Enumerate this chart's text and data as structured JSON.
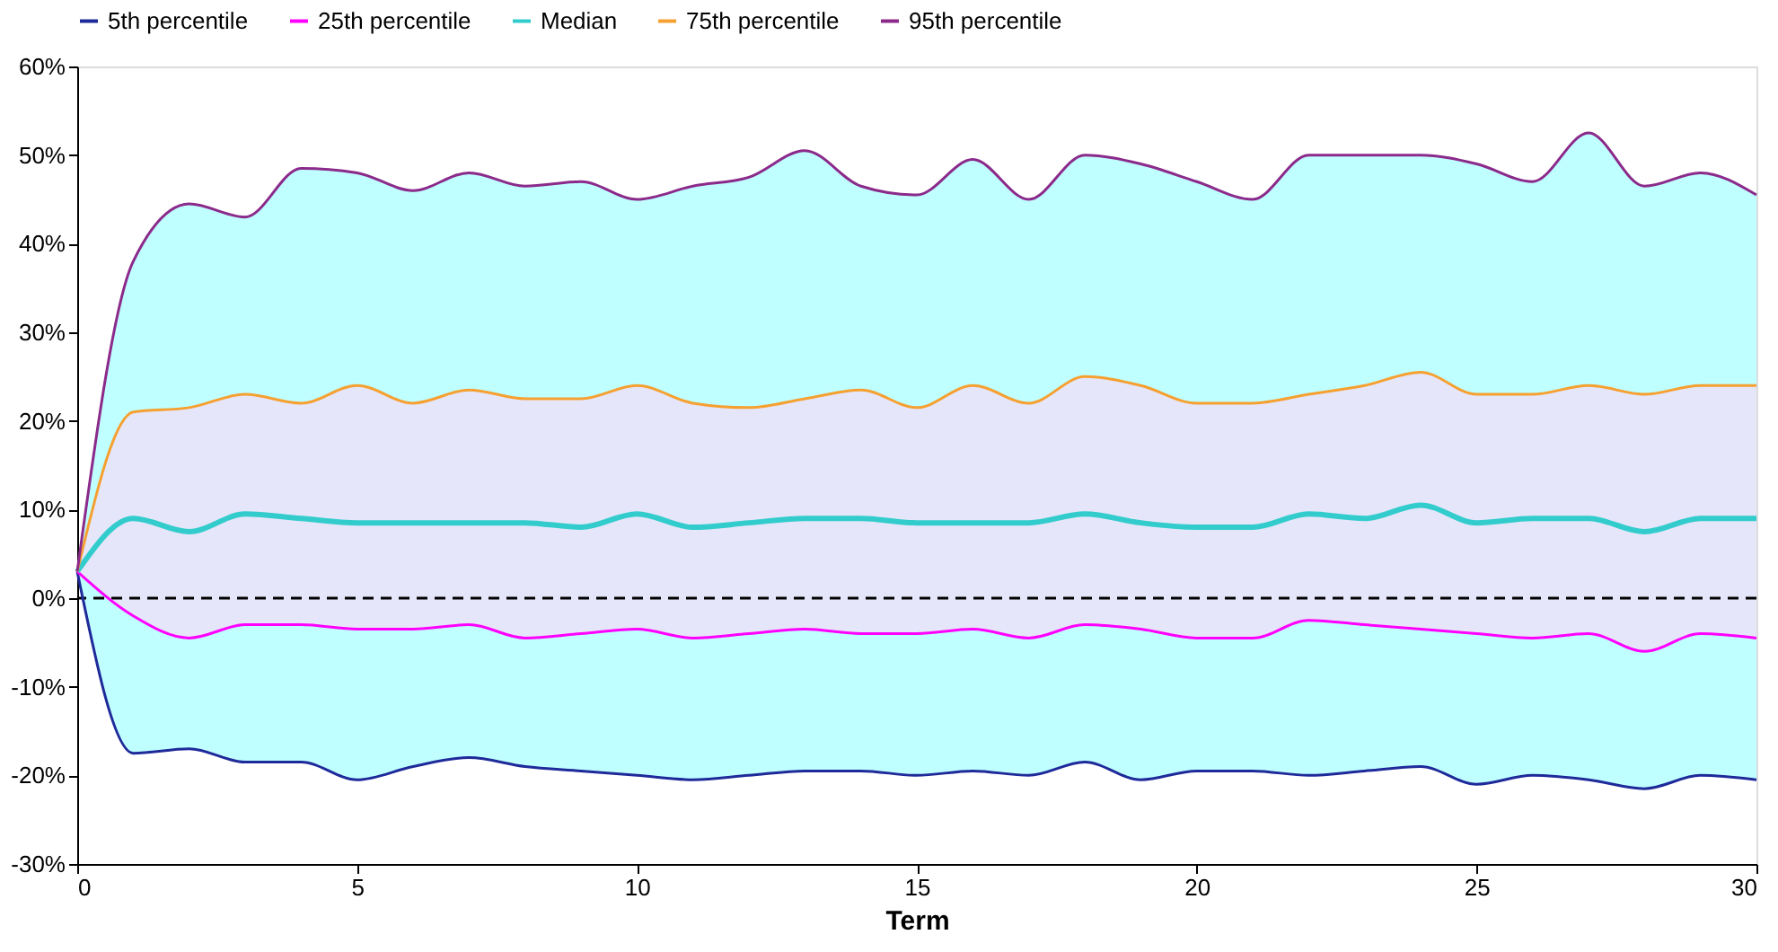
{
  "chart_data": {
    "type": "line",
    "xlabel": "Term",
    "x": [
      0,
      1,
      2,
      3,
      4,
      5,
      6,
      7,
      8,
      9,
      10,
      11,
      12,
      13,
      14,
      15,
      16,
      17,
      18,
      19,
      20,
      21,
      22,
      23,
      24,
      25,
      26,
      27,
      28,
      29,
      30
    ],
    "series": [
      {
        "name": "5th percentile",
        "color": "#1f2a9a",
        "values": [
          3,
          -17.5,
          -17,
          -18.5,
          -18.5,
          -20.5,
          -19,
          -18,
          -19,
          -19.5,
          -20,
          -20.5,
          -20,
          -19.5,
          -19.5,
          -20,
          -19.5,
          -20,
          -18.5,
          -20.5,
          -19.5,
          -19.5,
          -20,
          -19.5,
          -19,
          -21,
          -20,
          -20.5,
          -21.5,
          -20,
          -20.5
        ]
      },
      {
        "name": "25th percentile",
        "color": "#ff00ff",
        "values": [
          3,
          -2,
          -4.5,
          -3,
          -3,
          -3.5,
          -3.5,
          -3,
          -4.5,
          -4,
          -3.5,
          -4.5,
          -4,
          -3.5,
          -4,
          -4,
          -3.5,
          -4.5,
          -3,
          -3.5,
          -4.5,
          -4.5,
          -2.5,
          -3,
          -3.5,
          -4,
          -4.5,
          -4,
          -6,
          -4,
          -4.5
        ]
      },
      {
        "name": "Median",
        "color": "#33cccc",
        "values": [
          3,
          9,
          7.5,
          9.5,
          9,
          8.5,
          8.5,
          8.5,
          8.5,
          8,
          9.5,
          8,
          8.5,
          9,
          9,
          8.5,
          8.5,
          8.5,
          9.5,
          8.5,
          8,
          8,
          9.5,
          9,
          10.5,
          8.5,
          9,
          9,
          7.5,
          9,
          9
        ],
        "lower": [
          3,
          -2,
          -4.5,
          -3,
          -3,
          -3.5,
          -3.5,
          -3,
          -4.5,
          -4,
          -3.5,
          -4.5,
          -4,
          -3.5,
          -4,
          -4,
          -3.5,
          -4.5,
          -3,
          -3.5,
          -4.5,
          -4.5,
          -2.5,
          -3,
          -3.5,
          -4,
          -4.5,
          -4,
          -6,
          -4,
          -4.5
        ],
        "upper": [
          3,
          21,
          21.5,
          23,
          22,
          24,
          22,
          23.5,
          22.5,
          22.5,
          24,
          22,
          21.5,
          22.5,
          23.5,
          21.5,
          24,
          22,
          25,
          24,
          22,
          22,
          23,
          24,
          25.5,
          23,
          23,
          24,
          23,
          24,
          24
        ]
      },
      {
        "name": "75th percentile",
        "color": "#f5a030",
        "values": [
          3,
          21,
          21.5,
          23,
          22,
          24,
          22,
          23.5,
          22.5,
          22.5,
          24,
          22,
          21.5,
          22.5,
          23.5,
          21.5,
          24,
          22,
          25,
          24,
          22,
          22,
          23,
          24,
          25.5,
          23,
          23,
          24,
          23,
          24,
          24
        ]
      },
      {
        "name": "95th percentile",
        "color": "#8b2a8b",
        "values": [
          3,
          38,
          44.5,
          43,
          48.5,
          48,
          46,
          48,
          46.5,
          47,
          45,
          46.5,
          47.5,
          50.5,
          46.5,
          45.5,
          49.5,
          45,
          50,
          49,
          47,
          45,
          50,
          50,
          50,
          49,
          47,
          52.5,
          46.5,
          48,
          45.5
        ],
        "lower": [
          3,
          -17.5,
          -17,
          -18.5,
          -18.5,
          -20.5,
          -19,
          -18,
          -19,
          -19.5,
          -20,
          -20.5,
          -20,
          -19.5,
          -19.5,
          -20,
          -19.5,
          -20,
          -18.5,
          -20.5,
          -19.5,
          -19.5,
          -20,
          -19.5,
          -19,
          -21,
          -20,
          -20.5,
          -21.5,
          -20,
          -20.5
        ],
        "upper": [
          3,
          38,
          44.5,
          43,
          48.5,
          48,
          46,
          48,
          46.5,
          47,
          45,
          46.5,
          47.5,
          50.5,
          46.5,
          45.5,
          49.5,
          45,
          50,
          49,
          47,
          45,
          50,
          50,
          50,
          49,
          47,
          52.5,
          46.5,
          48,
          45.5
        ]
      }
    ],
    "xlim": [
      0,
      30
    ],
    "xticks": [
      0,
      5,
      10,
      15,
      20,
      25,
      30
    ],
    "ylim": [
      -30,
      60
    ],
    "yticks": [
      {
        "value": -30,
        "label": "-30%"
      },
      {
        "value": -20,
        "label": "-20%"
      },
      {
        "value": -10,
        "label": "-10%"
      },
      {
        "value": 0,
        "label": "0%"
      },
      {
        "value": 10,
        "label": "10%"
      },
      {
        "value": 20,
        "label": "20%"
      },
      {
        "value": 30,
        "label": "30%"
      },
      {
        "value": 40,
        "label": "40%"
      },
      {
        "value": 50,
        "label": "50%"
      },
      {
        "value": 60,
        "label": "60%"
      }
    ],
    "ref_lines": [
      {
        "axis": "y",
        "value": 0,
        "color": "#000000",
        "line_style": "dashed"
      }
    ],
    "grid": false,
    "legend": "top",
    "marker": "none",
    "line_style": "solid"
  }
}
